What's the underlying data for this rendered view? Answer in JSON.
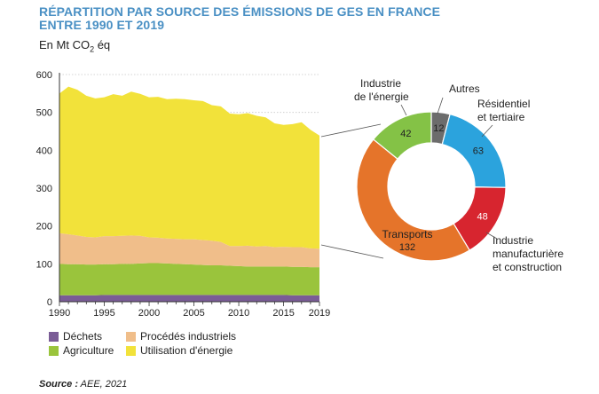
{
  "title_line1": "RÉPARTITION PAR SOURCE DES ÉMISSIONS DE GES EN FRANCE",
  "title_line2": "ENTRE 1990 ET 2019",
  "unit_prefix": "En Mt CO",
  "unit_sub": "2",
  "unit_suffix": " éq",
  "source_label": "Source :",
  "source_value": " AEE, 2021",
  "chart_data": [
    {
      "type": "area",
      "stacked": true,
      "x": [
        1990,
        1991,
        1992,
        1993,
        1994,
        1995,
        1996,
        1997,
        1998,
        1999,
        2000,
        2001,
        2002,
        2003,
        2004,
        2005,
        2006,
        2007,
        2008,
        2009,
        2010,
        2011,
        2012,
        2013,
        2014,
        2015,
        2016,
        2017,
        2018,
        2019
      ],
      "series": [
        {
          "name": "Déchets",
          "color": "#7a5c96",
          "values": [
            17,
            17,
            17,
            17,
            17,
            18,
            18,
            18,
            18,
            18,
            18,
            18,
            18,
            18,
            18,
            18,
            18,
            18,
            18,
            18,
            18,
            18,
            18,
            18,
            18,
            18,
            17,
            17,
            17,
            17
          ]
        },
        {
          "name": "Agriculture",
          "color": "#9ac43c",
          "values": [
            83,
            82,
            82,
            81,
            81,
            81,
            81,
            82,
            82,
            83,
            84,
            84,
            83,
            82,
            81,
            80,
            79,
            78,
            78,
            77,
            76,
            75,
            75,
            75,
            75,
            75,
            75,
            75,
            74,
            74
          ]
        },
        {
          "name": "Procédés industriels",
          "color": "#f0be8a",
          "values": [
            81,
            79,
            76,
            73,
            72,
            74,
            74,
            74,
            75,
            73,
            68,
            67,
            66,
            66,
            66,
            67,
            66,
            65,
            62,
            52,
            53,
            55,
            53,
            54,
            51,
            52,
            52,
            52,
            50,
            49
          ]
        },
        {
          "name": "Utilisation d'énergie",
          "color": "#f2e23a",
          "values": [
            369,
            390,
            385,
            373,
            367,
            367,
            375,
            370,
            380,
            375,
            370,
            372,
            368,
            370,
            370,
            367,
            367,
            358,
            358,
            350,
            348,
            350,
            345,
            340,
            327,
            322,
            325,
            330,
            313,
            299
          ]
        }
      ],
      "xticks": [
        1990,
        1995,
        2000,
        2005,
        2010,
        2015,
        2019
      ],
      "yticks": [
        0,
        100,
        200,
        300,
        400,
        500,
        600
      ],
      "ylim": [
        0,
        600
      ],
      "legend_position": "bottom"
    },
    {
      "type": "pie",
      "donut": true,
      "slices": [
        {
          "label": "Autres",
          "value": 12,
          "color": "#6c6c6c"
        },
        {
          "label": "Résidentiel et tertiaire",
          "value": 63,
          "color": "#2ba3dd"
        },
        {
          "label": "Industrie manufacturière et construction",
          "value": 48,
          "color": "#d7252f"
        },
        {
          "label": "Transports",
          "value": 132,
          "color": "#e5742a"
        },
        {
          "label": "Industrie de l'énergie",
          "value": 42,
          "color": "#84c246"
        }
      ],
      "labels": {
        "autres": "Autres",
        "residentiel": [
          "Résidentiel",
          "et tertiaire"
        ],
        "industrie_manuf": [
          "Industrie",
          "manufacturière",
          "et construction"
        ],
        "transports": "Transports",
        "industrie_energie": [
          "Industrie",
          "de l'énergie"
        ]
      }
    }
  ]
}
